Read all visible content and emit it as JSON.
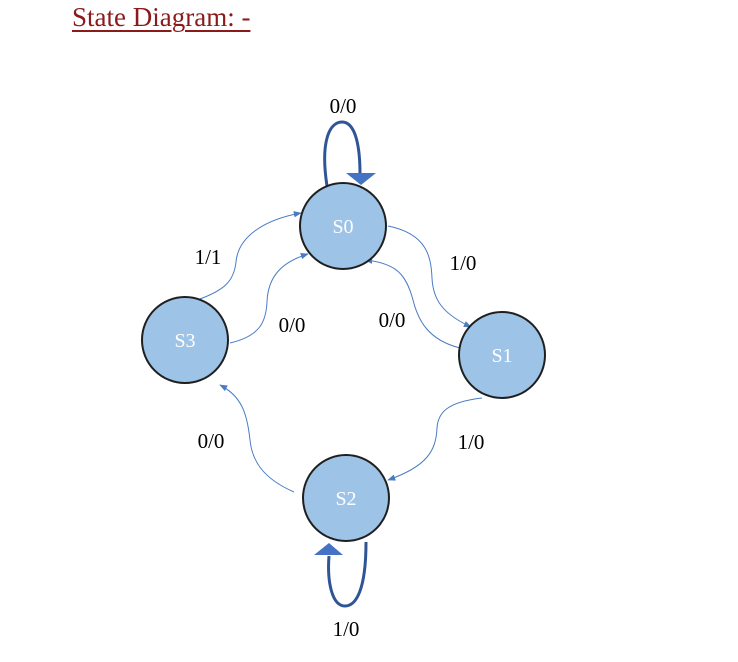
{
  "title": "State Diagram: -",
  "colors": {
    "title_text": "#8b1a1a",
    "state_fill": "#9dc3e6",
    "state_stroke": "#1f1f1f",
    "state_text": "#ffffff",
    "edge": "#4a7cc4",
    "self_loop": "#2f5597",
    "self_loop_arrow": "#4472c4"
  },
  "states": [
    {
      "id": "S0",
      "label": "S0"
    },
    {
      "id": "S1",
      "label": "S1"
    },
    {
      "id": "S2",
      "label": "S2"
    },
    {
      "id": "S3",
      "label": "S3"
    }
  ],
  "transitions": [
    {
      "from": "S0",
      "to": "S0",
      "label": "0/0"
    },
    {
      "from": "S0",
      "to": "S1",
      "label": "1/0"
    },
    {
      "from": "S1",
      "to": "S0",
      "label": "0/0"
    },
    {
      "from": "S1",
      "to": "S2",
      "label": "1/0"
    },
    {
      "from": "S2",
      "to": "S2",
      "label": "1/0"
    },
    {
      "from": "S2",
      "to": "S3",
      "label": "0/0"
    },
    {
      "from": "S3",
      "to": "S0",
      "label": "1/1"
    },
    {
      "from": "S3",
      "to": "S0",
      "label": "0/0"
    }
  ]
}
